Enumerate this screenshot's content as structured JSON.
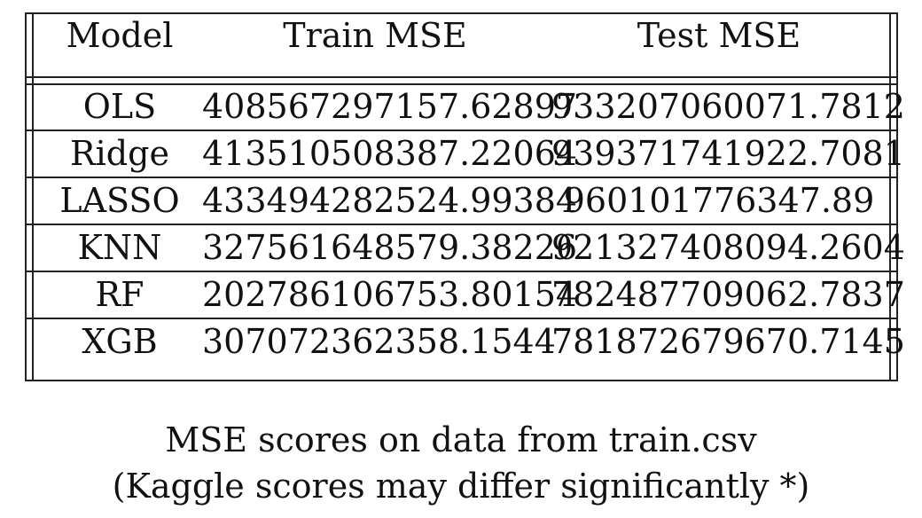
{
  "table": {
    "headers": [
      "Model",
      "Train MSE",
      "Test MSE"
    ],
    "rows": [
      [
        "OLS",
        "408567297157.62897",
        "933207060071.7812"
      ],
      [
        "Ridge",
        "413510508387.22064",
        "939371741922.7081"
      ],
      [
        "LASSO",
        "433494282524.99384",
        "960101776347.89"
      ],
      [
        "KNN",
        "327561648579.38226",
        "921327408094.2604"
      ],
      [
        "RF",
        "202786106753.80154",
        "782487709062.7837"
      ],
      [
        "XGB",
        "307072362358.1544",
        "781872679670.7145"
      ]
    ]
  },
  "caption": {
    "line1": "MSE scores on data from train.csv",
    "line2": "(Kaggle scores may differ significantly *)"
  }
}
